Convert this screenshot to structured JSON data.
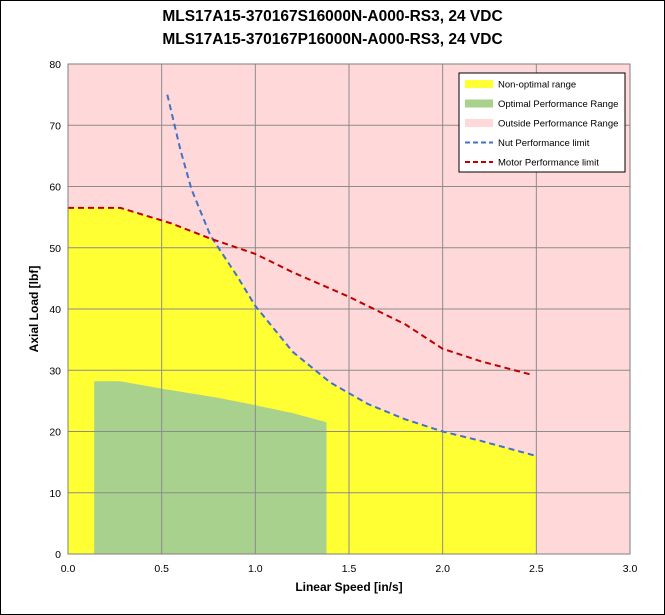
{
  "chart_data": {
    "type": "area",
    "title": "MLS17A15-370167S16000N-A000-RS3, 24 VDC",
    "subtitle": "MLS17A15-370167P16000N-A000-RS3, 24 VDC",
    "xlabel": "Linear Speed [in/s]",
    "ylabel": "Axial Load [lbf]",
    "xlim": [
      0,
      3
    ],
    "ylim": [
      0,
      80
    ],
    "xticks": [
      "0.0",
      "0.5",
      "1.0",
      "1.5",
      "2.0",
      "2.5",
      "3.0"
    ],
    "yticks": [
      "0",
      "10",
      "20",
      "30",
      "40",
      "50",
      "60",
      "70",
      "80"
    ],
    "grid": true,
    "legend_position": "top-right",
    "series": [
      {
        "name": "Non-optimal range",
        "kind": "area",
        "color": "#ffff33",
        "points": [
          [
            0,
            56.5
          ],
          [
            0.28,
            56.5
          ],
          [
            0.55,
            54
          ],
          [
            0.76,
            51.5
          ],
          [
            0.9,
            46
          ],
          [
            1.0,
            40.5
          ],
          [
            1.2,
            33
          ],
          [
            1.4,
            28
          ],
          [
            1.6,
            24.5
          ],
          [
            1.8,
            22
          ],
          [
            2.0,
            20
          ],
          [
            2.2,
            18.5
          ],
          [
            2.5,
            16
          ],
          [
            2.5,
            0
          ],
          [
            0,
            0
          ]
        ]
      },
      {
        "name": "Optimal Performance Range",
        "kind": "area",
        "color": "#a9d18e",
        "points": [
          [
            0.14,
            28.2
          ],
          [
            0.28,
            28.2
          ],
          [
            0.5,
            27
          ],
          [
            0.8,
            25.5
          ],
          [
            1.0,
            24.3
          ],
          [
            1.2,
            23
          ],
          [
            1.38,
            21.5
          ],
          [
            1.38,
            0
          ],
          [
            0.14,
            0
          ]
        ]
      },
      {
        "name": "Outside Performance Range",
        "kind": "background",
        "color": "#ffd9d9"
      },
      {
        "name": "Nut Performance limit",
        "kind": "dashed-line",
        "color": "#4472c4",
        "points": [
          [
            0.53,
            75
          ],
          [
            0.6,
            66
          ],
          [
            0.66,
            59.5
          ],
          [
            0.76,
            52
          ],
          [
            0.9,
            45.5
          ],
          [
            1.0,
            40.5
          ],
          [
            1.2,
            33
          ],
          [
            1.4,
            28
          ],
          [
            1.6,
            24.5
          ],
          [
            1.8,
            22
          ],
          [
            2.0,
            20
          ],
          [
            2.2,
            18.5
          ],
          [
            2.5,
            16
          ]
        ]
      },
      {
        "name": "Motor Performance limit",
        "kind": "dashed-line",
        "color": "#c00000",
        "points": [
          [
            0,
            56.5
          ],
          [
            0.28,
            56.5
          ],
          [
            0.55,
            54
          ],
          [
            0.76,
            51.5
          ],
          [
            1.0,
            49
          ],
          [
            1.2,
            46
          ],
          [
            1.5,
            42
          ],
          [
            1.8,
            37.5
          ],
          [
            2.0,
            33.5
          ],
          [
            2.2,
            31.5
          ],
          [
            2.47,
            29.3
          ]
        ]
      }
    ]
  }
}
